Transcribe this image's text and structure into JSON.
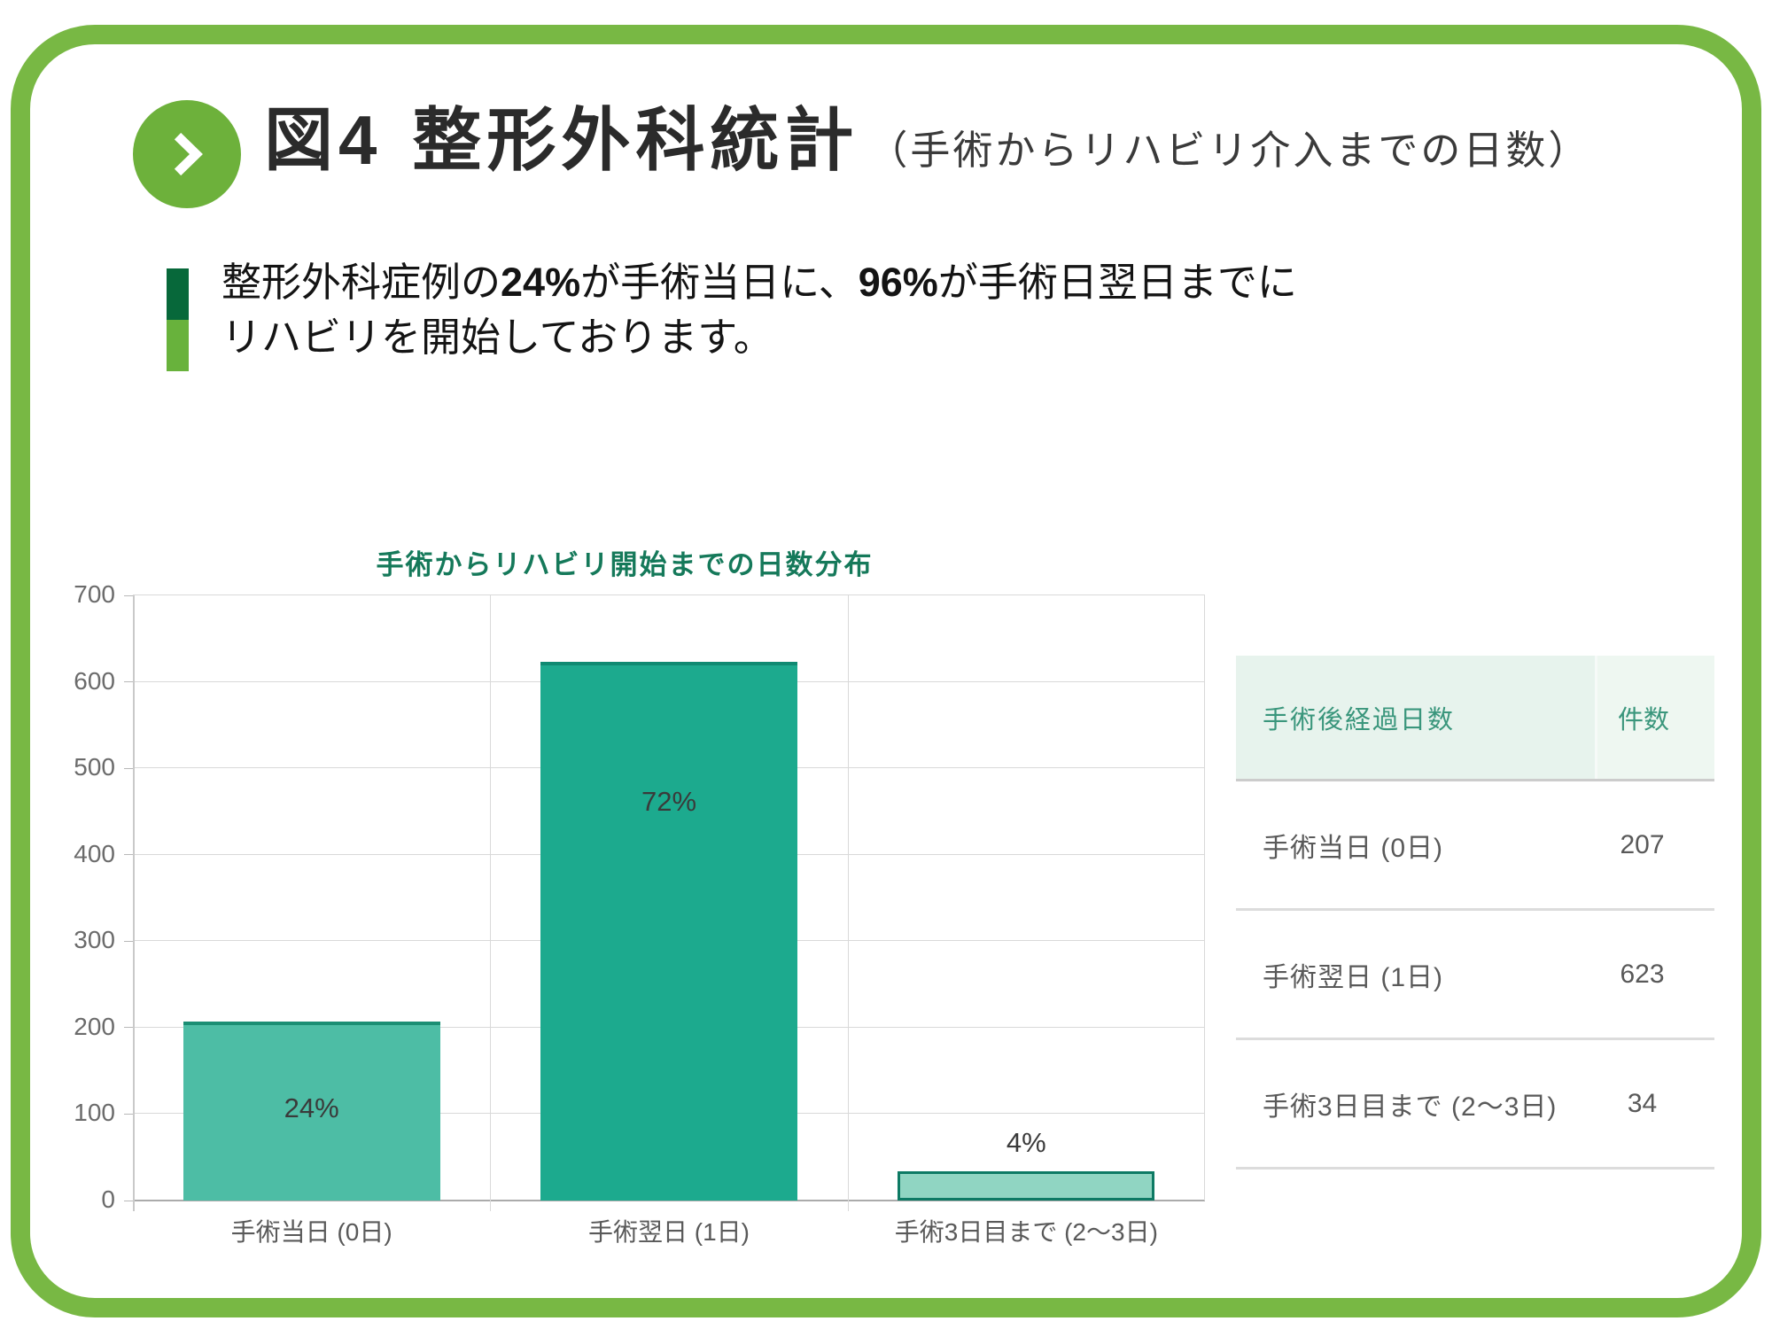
{
  "header": {
    "figure_label": "図4",
    "title": "整形外科統計",
    "subtitle": "（手術からリハビリ介入までの日数）"
  },
  "statement": {
    "part1": "整形外科症例の",
    "bold1": "24%",
    "part2": "が手術当日に、",
    "bold2": "96%",
    "part3": "が手術日翌日までに",
    "line2": "リハビリを開始しております。"
  },
  "chart_data": {
    "type": "bar",
    "title": "手術からリハビリ開始までの日数分布",
    "categories": [
      "手術当日 (0日)",
      "手術翌日 (1日)",
      "手術3日目まで (2～3日)"
    ],
    "values": [
      207,
      623,
      34
    ],
    "percent_labels": [
      "24%",
      "72%",
      "4%"
    ],
    "label_positions": [
      "inside-center",
      "inside-upper",
      "above"
    ],
    "xlabel": "",
    "ylabel": "",
    "ylim": [
      0,
      700
    ],
    "ytick_step": 100,
    "grid": true,
    "legend": "none",
    "bar_colors": [
      "#4dbda5",
      "#1caa8e",
      "#90d5c2"
    ],
    "bar_border_colors": [
      "#1b8e74",
      "#0f8a72",
      "#0d7a64"
    ]
  },
  "table": {
    "headers": [
      "手術後経過日数",
      "件数"
    ],
    "rows": [
      [
        "手術当日 (0日)",
        "207"
      ],
      [
        "手術翌日 (1日)",
        "623"
      ],
      [
        "手術3日目まで (2～3日)",
        "34"
      ]
    ]
  },
  "icons": {
    "chevron": "chevron-right-icon"
  },
  "colors": {
    "slide_border_green": "#78b844",
    "circle_green": "#6db13b",
    "accent_dark_green": "#07683a",
    "accent_light_green": "#68b23c",
    "chart_title_green": "#15795a",
    "table_header_bg": "#e7f3ed",
    "table_header_text": "#3a967c",
    "table_row_text": "#595959",
    "gridline_gray": "#d9d9d9"
  }
}
